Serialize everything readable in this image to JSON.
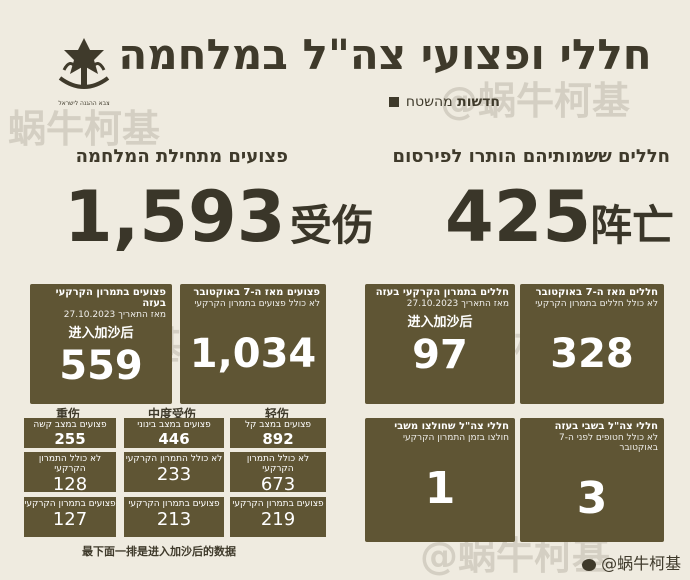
{
  "header": {
    "title": "חללי ופצועי צה\"ל במלחמה",
    "news_brand": "חדשות",
    "news_sub": "מהשטח",
    "logo_text": "צבא ההגנה לישראל"
  },
  "watermarks": [
    "蜗牛柯基",
    "@蜗牛柯基"
  ],
  "wounded": {
    "heading": "פצועים מתחילת המלחמה",
    "total": "1,593",
    "total_cn": "受伤",
    "gaza_box": {
      "title": "פצועים בתמרון הקרקעי בעזה",
      "sub": "מאז התאריך 27.10.2023",
      "cn": "进入加沙后",
      "value": "559"
    },
    "oct_box": {
      "title": "פצועים מאז ה-7 באוקטובר",
      "sub": "לא כולל פצועים בתמרון הקרקעי",
      "value": "1,034"
    }
  },
  "killed": {
    "heading": "חללים ששמותיהם הותרו לפירסום",
    "total": "425",
    "total_cn": "阵亡",
    "gaza_box": {
      "title": "חללים בתמרון הקרקעי בעזה",
      "sub": "מאז התאריך 27.10.2023",
      "cn": "进入加沙后",
      "value": "97"
    },
    "oct_box": {
      "title": "חללים מאז ה-7 באוקטובר",
      "sub": "לא כולל חללים בתמרון הקרקעי",
      "value": "328"
    },
    "friendly_box": {
      "title": "חללי צה\"ל שחולצו משבי",
      "sub": "חולצו בזמן התמרון הקרקעי",
      "value": "1"
    },
    "captive_box": {
      "title": "חללי צה\"ל בשבי בעזה",
      "sub": "לא כולל חטופים לפני ה-7 באוקטובר",
      "value": "3"
    }
  },
  "severity": {
    "columns": [
      {
        "cn": "重伤",
        "top_label": "פצועים במצב קשה",
        "top_value": "255",
        "mid_label": "לא כולל התמרון הקרקעי",
        "mid_value": "128",
        "bot_label": "פצועים בתמרון הקרקעי",
        "bot_value": "127"
      },
      {
        "cn": "中度受伤",
        "top_label": "פצועים במצב בינוני",
        "top_value": "446",
        "mid_label": "לא כולל התמרון הקרקעי",
        "mid_value": "233",
        "bot_label": "פצועים בתמרון הקרקעי",
        "bot_value": "213"
      },
      {
        "cn": "轻伤",
        "top_label": "פצועים במצב קל",
        "top_value": "892",
        "mid_label": "לא כולל התמרון הקרקעי",
        "mid_value": "673",
        "bot_label": "פצועים בתמרון הקרקעי",
        "bot_value": "219"
      }
    ]
  },
  "footer_note": "最下面一排是进入加沙后的数据",
  "weibo_credit": "@蜗牛柯基",
  "colors": {
    "olive": "#5f5534",
    "background": "#efebe0",
    "text": "#3f3a2b"
  }
}
